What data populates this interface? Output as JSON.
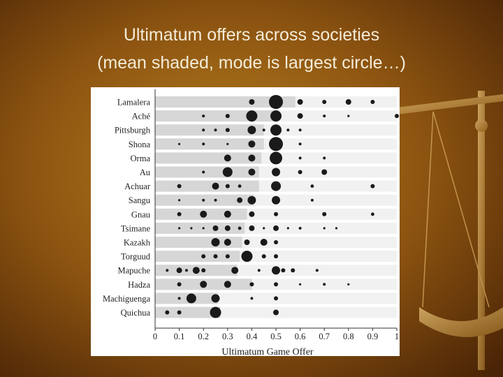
{
  "chart_data": {
    "type": "scatter",
    "title": [
      "Ultimatum offers across societies",
      "(mean shaded, mode is largest circle…)"
    ],
    "xlabel": "Ultimatum Game Offer",
    "categories": [
      "Lamalera",
      "Aché",
      "Pittsburgh",
      "Shona",
      "Orma",
      "Au",
      "Achuar",
      "Sangu",
      "Gnau",
      "Tsimane",
      "Kazakh",
      "Torguud",
      "Mapuche",
      "Hadza",
      "Machiguenga",
      "Quichua"
    ],
    "means": [
      0.58,
      0.51,
      0.45,
      0.45,
      0.44,
      0.43,
      0.43,
      0.41,
      0.38,
      0.37,
      0.36,
      0.35,
      0.34,
      0.4,
      0.26,
      0.27
    ],
    "points": [
      {
        "x": [
          0.4,
          0.5,
          0.6,
          0.7,
          0.8,
          0.9
        ],
        "sizes": [
          2,
          5,
          2,
          1.5,
          2,
          1.5
        ]
      },
      {
        "x": [
          0.2,
          0.3,
          0.4,
          0.5,
          0.6,
          0.7,
          0.8,
          1.0
        ],
        "sizes": [
          1,
          1.5,
          4,
          4,
          2,
          1,
          0.8,
          1.5
        ]
      },
      {
        "x": [
          0.2,
          0.25,
          0.3,
          0.4,
          0.45,
          0.5,
          0.55,
          0.6
        ],
        "sizes": [
          1,
          1,
          1.5,
          3,
          1,
          4,
          1,
          1
        ]
      },
      {
        "x": [
          0.1,
          0.2,
          0.3,
          0.4,
          0.5,
          0.6
        ],
        "sizes": [
          0.8,
          1,
          0.8,
          2.5,
          5,
          1
        ]
      },
      {
        "x": [
          0.3,
          0.4,
          0.5,
          0.6,
          0.7
        ],
        "sizes": [
          2.5,
          2.5,
          4.5,
          1,
          1
        ]
      },
      {
        "x": [
          0.2,
          0.3,
          0.4,
          0.5,
          0.6,
          0.7
        ],
        "sizes": [
          1,
          3.5,
          2.5,
          3,
          1.5,
          2
        ]
      },
      {
        "x": [
          0.1,
          0.25,
          0.3,
          0.35,
          0.5,
          0.65,
          0.9
        ],
        "sizes": [
          1.5,
          2.5,
          1.5,
          1.2,
          3.5,
          1.2,
          1.5
        ]
      },
      {
        "x": [
          0.1,
          0.2,
          0.25,
          0.35,
          0.4,
          0.5,
          0.65
        ],
        "sizes": [
          0.8,
          1,
          1,
          2,
          3,
          3,
          1
        ]
      },
      {
        "x": [
          0.1,
          0.2,
          0.3,
          0.4,
          0.5,
          0.7,
          0.9
        ],
        "sizes": [
          1.5,
          2.5,
          2.5,
          2,
          1.5,
          1.5,
          1.2
        ]
      },
      {
        "x": [
          0.1,
          0.15,
          0.2,
          0.25,
          0.3,
          0.35,
          0.4,
          0.45,
          0.5,
          0.55,
          0.6,
          0.7,
          0.75
        ],
        "sizes": [
          0.8,
          0.8,
          0.8,
          2,
          2,
          1.2,
          2,
          0.8,
          2,
          0.8,
          1,
          0.8,
          0.8
        ]
      },
      {
        "x": [
          0.25,
          0.3,
          0.38,
          0.45,
          0.5
        ],
        "sizes": [
          3,
          2.5,
          2,
          2.5,
          1.5
        ]
      },
      {
        "x": [
          0.2,
          0.25,
          0.3,
          0.38,
          0.45,
          0.5
        ],
        "sizes": [
          1.5,
          1.5,
          1.5,
          4,
          1.5,
          1.5
        ]
      },
      {
        "x": [
          0.05,
          0.1,
          0.13,
          0.17,
          0.2,
          0.33,
          0.43,
          0.5,
          0.53,
          0.57,
          0.67
        ],
        "sizes": [
          1,
          2,
          1,
          2.5,
          1.5,
          2.5,
          1,
          3,
          1.5,
          1.5,
          1
        ]
      },
      {
        "x": [
          0.1,
          0.2,
          0.3,
          0.4,
          0.5,
          0.6,
          0.7,
          0.8
        ],
        "sizes": [
          1.5,
          2.5,
          2.5,
          1.5,
          1.5,
          0.8,
          1,
          0.8
        ]
      },
      {
        "x": [
          0.1,
          0.15,
          0.25,
          0.4,
          0.5
        ],
        "sizes": [
          1,
          3.5,
          3,
          1,
          1.5
        ]
      },
      {
        "x": [
          0.05,
          0.1,
          0.25,
          0.5
        ],
        "sizes": [
          1.5,
          1.5,
          4,
          2
        ]
      }
    ],
    "xlim": [
      0,
      1
    ],
    "xticks": [
      0,
      0.1,
      0.2,
      0.3,
      0.4,
      0.5,
      0.6,
      0.7,
      0.8,
      0.9,
      1
    ],
    "point_color": "#1a1a1a",
    "mean_color": "#d6d6d6"
  }
}
